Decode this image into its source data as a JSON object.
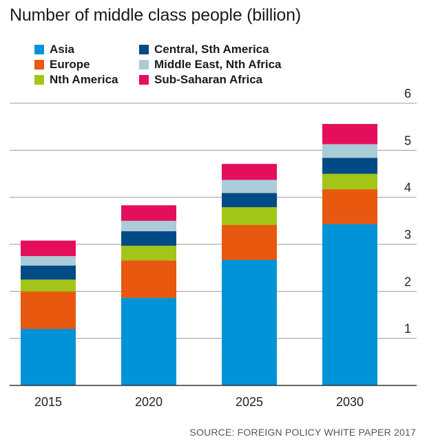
{
  "chart_data": {
    "type": "bar",
    "stacked": true,
    "title": "Number of middle class people (billion)",
    "categories": [
      "2015",
      "2020",
      "2025",
      "2030"
    ],
    "series": [
      {
        "name": "Asia",
        "color": "#0093d8",
        "values": [
          1.2,
          1.86,
          2.67,
          3.43
        ]
      },
      {
        "name": "Europe",
        "color": "#e8580f",
        "values": [
          0.8,
          0.8,
          0.74,
          0.74
        ]
      },
      {
        "name": "Nth America",
        "color": "#a2c617",
        "values": [
          0.25,
          0.31,
          0.38,
          0.33
        ]
      },
      {
        "name": "Central, Sth America",
        "color": "#004a86",
        "values": [
          0.3,
          0.31,
          0.3,
          0.34
        ]
      },
      {
        "name": "Middle East, Nth Africa",
        "color": "#a9ccd8",
        "values": [
          0.2,
          0.22,
          0.28,
          0.29
        ]
      },
      {
        "name": "Sub-Saharan Africa",
        "color": "#e40e5d",
        "values": [
          0.33,
          0.33,
          0.34,
          0.43
        ]
      }
    ],
    "ylim": [
      0,
      6
    ],
    "yticks": [
      1,
      2,
      3,
      4,
      5,
      6
    ],
    "y_axis_side": "right",
    "grid": true,
    "legend_position": "top-left",
    "source": "SOURCE: FOREIGN POLICY WHITE PAPER 2017"
  }
}
